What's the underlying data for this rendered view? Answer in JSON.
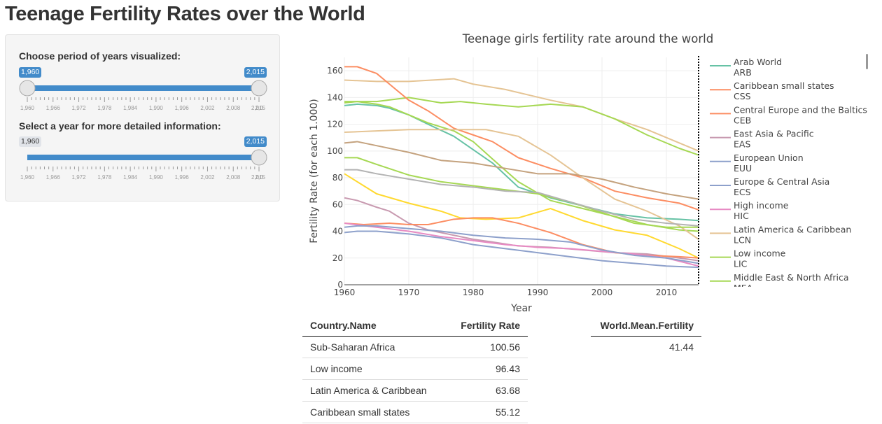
{
  "page": {
    "title": "Teenage Fertility Rates over the World"
  },
  "controls": {
    "period": {
      "label": "Choose period of years visualized:",
      "min_badge": "1,960",
      "max_badge": "2,015",
      "min": 1960,
      "max": 2015,
      "from": 1960,
      "to": 2015,
      "ticks": [
        "1,960",
        "1,966",
        "1,972",
        "1,978",
        "1,984",
        "1,990",
        "1,996",
        "2,002",
        "2,008",
        "2,0"
      ],
      "last_tick_overlap": "2,015"
    },
    "year": {
      "label": "Select a year for more detailed information:",
      "min_badge": "1,960",
      "value_badge": "2,015",
      "min": 1960,
      "max": 2015,
      "value": 2015,
      "ticks": [
        "1,960",
        "1,966",
        "1,972",
        "1,978",
        "1,984",
        "1,990",
        "1,996",
        "2,002",
        "2,008",
        "2,0"
      ],
      "last_tick_overlap": "2,015"
    }
  },
  "chart_data": {
    "type": "line",
    "title": "Teenage girls fertility rate around the world",
    "xlabel": "Year",
    "ylabel": "Fertility Rate (for each 1.000)",
    "xlim": [
      1960,
      2015
    ],
    "ylim": [
      0,
      170
    ],
    "xticks": [
      1960,
      1970,
      1980,
      1990,
      2000,
      2010
    ],
    "yticks": [
      0,
      20,
      40,
      60,
      80,
      100,
      120,
      140,
      160
    ],
    "marker_year": 2015,
    "grid": true,
    "legend": "right",
    "legend_entries": [
      {
        "name": "Arab World",
        "code": "ARB",
        "color": "#66c2a5"
      },
      {
        "name": "Caribbean small states",
        "code": "CSS",
        "color": "#fc8d62"
      },
      {
        "name": "Central Europe and the Baltics",
        "code": "CEB",
        "color": "#fc8d62"
      },
      {
        "name": "East Asia & Pacific",
        "code": "EAS",
        "color": "#c89ab0"
      },
      {
        "name": "European Union",
        "code": "EUU",
        "color": "#8da0cb"
      },
      {
        "name": "Europe & Central Asia",
        "code": "ECS",
        "color": "#8da0cb"
      },
      {
        "name": "High income",
        "code": "HIC",
        "color": "#e78ac3"
      },
      {
        "name": "Latin America & Caribbean",
        "code": "LCN",
        "color": "#e5c494"
      },
      {
        "name": "Low income",
        "code": "LIC",
        "color": "#a6d854"
      },
      {
        "name": "Middle East & North Africa",
        "code": "MEA",
        "color": "#a6d854"
      }
    ],
    "series": [
      {
        "color": "#e5c494",
        "x": [
          1960,
          1965,
          1970,
          1977,
          1980,
          1985,
          1992,
          1997,
          2002,
          2007,
          2012,
          2015
        ],
        "y": [
          153,
          152,
          152,
          154,
          150,
          146,
          138,
          133,
          124,
          116,
          106,
          100
        ]
      },
      {
        "color": "#a6d854",
        "x": [
          1960,
          1965,
          1970,
          1975,
          1978,
          1982,
          1987,
          1992,
          1997,
          2002,
          2007,
          2012,
          2015
        ],
        "y": [
          137,
          137,
          140,
          136,
          137,
          135,
          133,
          135,
          133,
          124,
          112,
          102,
          97
        ]
      },
      {
        "color": "#fc8d62",
        "x": [
          1960,
          1962,
          1965,
          1967,
          1970,
          1973,
          1977,
          1980,
          1983,
          1987,
          1992,
          1997,
          2002,
          2007,
          2012,
          2015
        ],
        "y": [
          163,
          163,
          158,
          150,
          138,
          130,
          117,
          112,
          107,
          95,
          87,
          80,
          70,
          65,
          61,
          56
        ]
      },
      {
        "color": "#66c2a5",
        "x": [
          1960,
          1962,
          1965,
          1967,
          1970,
          1973,
          1977,
          1980,
          1983,
          1987,
          1992,
          1997,
          2002,
          2007,
          2012,
          2015
        ],
        "y": [
          134,
          135,
          134,
          132,
          127,
          120,
          111,
          101,
          91,
          73,
          65,
          59,
          53,
          50,
          49,
          48
        ]
      },
      {
        "color": "#a6d854",
        "x": [
          1960,
          1962,
          1965,
          1967,
          1970,
          1973,
          1977,
          1980,
          1983,
          1987,
          1992,
          1997,
          2002,
          2007,
          2012,
          2015
        ],
        "y": [
          136,
          137,
          135,
          133,
          127,
          121,
          115,
          107,
          94,
          77,
          63,
          57,
          51,
          45,
          41,
          40
        ]
      },
      {
        "color": "#e5c494",
        "x": [
          1960,
          1965,
          1970,
          1975,
          1980,
          1982,
          1987,
          1992,
          1997,
          2002,
          2007,
          2012,
          2015
        ],
        "y": [
          114,
          115,
          116,
          116,
          116,
          116,
          111,
          97,
          80,
          64,
          55,
          44,
          34
        ]
      },
      {
        "color": "#c4a27e",
        "x": [
          1960,
          1962,
          1965,
          1970,
          1975,
          1980,
          1985,
          1990,
          1995,
          2000,
          2005,
          2010,
          2015
        ],
        "y": [
          106,
          107,
          104,
          99,
          93,
          91,
          87,
          83,
          83,
          79,
          73,
          68,
          64
        ]
      },
      {
        "color": "#a6d854",
        "x": [
          1960,
          1962,
          1965,
          1970,
          1975,
          1980,
          1985,
          1990,
          1995,
          2000,
          2005,
          2010,
          2015
        ],
        "y": [
          95,
          95,
          90,
          82,
          77,
          74,
          71,
          68,
          62,
          54,
          46,
          43,
          43
        ]
      },
      {
        "color": "#b3b3b3",
        "x": [
          1960,
          1962,
          1965,
          1970,
          1975,
          1980,
          1985,
          1990,
          1995,
          2000,
          2005,
          2010,
          2015
        ],
        "y": [
          86,
          86,
          83,
          79,
          75,
          73,
          70,
          69,
          62,
          55,
          49,
          46,
          44
        ]
      },
      {
        "color": "#ffd92f",
        "x": [
          1960,
          1965,
          1970,
          1975,
          1978,
          1982,
          1987,
          1992,
          1997,
          2002,
          2007,
          2012,
          2015
        ],
        "y": [
          83,
          68,
          61,
          55,
          50,
          49,
          50,
          57,
          48,
          41,
          37,
          27,
          20
        ]
      },
      {
        "color": "#c89ab0",
        "x": [
          1960,
          1962,
          1965,
          1967,
          1970,
          1973,
          1977,
          1980,
          1983,
          1987,
          1992,
          1997,
          2002,
          2007,
          2012,
          2015
        ],
        "y": [
          65,
          63,
          58,
          55,
          46,
          41,
          37,
          34,
          32,
          29,
          28,
          26,
          24,
          23,
          20,
          18
        ]
      },
      {
        "color": "#fc8d62",
        "x": [
          1960,
          1963,
          1967,
          1970,
          1973,
          1977,
          1980,
          1983,
          1987,
          1992,
          1997,
          2002,
          2007,
          2012,
          2015
        ],
        "y": [
          46,
          45,
          46,
          45,
          45,
          49,
          50,
          50,
          46,
          39,
          30,
          24,
          22,
          21,
          20
        ]
      },
      {
        "color": "#e78ac3",
        "x": [
          1960,
          1965,
          1970,
          1975,
          1980,
          1985,
          1990,
          1995,
          2000,
          2005,
          2010,
          2015
        ],
        "y": [
          46,
          43,
          40,
          36,
          33,
          30,
          28,
          27,
          25,
          23,
          20,
          14
        ]
      },
      {
        "color": "#8da0cb",
        "x": [
          1960,
          1962,
          1965,
          1970,
          1975,
          1980,
          1985,
          1990,
          1995,
          2000,
          2005,
          2010,
          2015
        ],
        "y": [
          43,
          44,
          44,
          42,
          40,
          37,
          35,
          34,
          32,
          26,
          22,
          20,
          16
        ]
      },
      {
        "color": "#8da0cb",
        "x": [
          1960,
          1962,
          1965,
          1970,
          1975,
          1980,
          1985,
          1990,
          1995,
          2000,
          2005,
          2010,
          2015
        ],
        "y": [
          39,
          40,
          40,
          38,
          35,
          30,
          27,
          24,
          21,
          18,
          16,
          14,
          13
        ]
      }
    ]
  },
  "table": {
    "headers": [
      "Country.Name",
      "Fertility Rate"
    ],
    "rows": [
      {
        "name": "Sub-Saharan Africa",
        "value": "100.56"
      },
      {
        "name": "Low income",
        "value": "96.43"
      },
      {
        "name": "Latin America & Caribbean",
        "value": "63.68"
      },
      {
        "name": "Caribbean small states",
        "value": "55.12"
      }
    ]
  },
  "mean_table": {
    "header": "World.Mean.Fertility",
    "value": "41.44"
  }
}
